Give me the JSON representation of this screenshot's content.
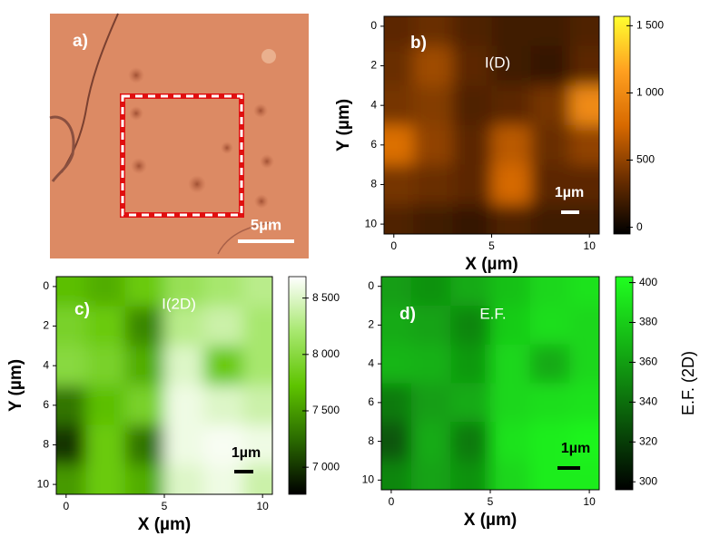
{
  "chart_data": [
    {
      "type": "image",
      "label": "a)",
      "scale_bar": "5µm"
    },
    {
      "type": "heatmap",
      "label": "b)",
      "title": "I(D)",
      "scale_bar": "1µm",
      "x_label": "X (µm)",
      "y_label": "Y (µm)",
      "x": [
        0,
        2,
        4,
        6,
        8,
        10
      ],
      "y": [
        0,
        2,
        4,
        6,
        8,
        10
      ],
      "z": [
        [
          300,
          350,
          250,
          200,
          200,
          250
        ],
        [
          350,
          550,
          300,
          200,
          150,
          300
        ],
        [
          400,
          450,
          250,
          300,
          400,
          1000
        ],
        [
          800,
          500,
          300,
          650,
          350,
          500
        ],
        [
          400,
          350,
          300,
          750,
          300,
          300
        ],
        [
          250,
          200,
          150,
          250,
          200,
          200
        ]
      ],
      "xlim": [
        -0.5,
        10.5
      ],
      "ylim": [
        -0.5,
        10.5
      ],
      "y_inverted": true,
      "xticks": [
        0,
        5,
        10
      ],
      "yticks": [
        0,
        2,
        4,
        6,
        8,
        10
      ],
      "clim": [
        -50,
        1570
      ],
      "cticks": [
        0,
        500,
        {
          "value": 1000,
          "label": "1 000"
        },
        {
          "value": 1500,
          "label": "1 500"
        }
      ],
      "colormap": [
        "#000000",
        "#6a2e00",
        "#d86a00",
        "#ffa020",
        "#ffff30"
      ],
      "text_color": "#ffffff"
    },
    {
      "type": "heatmap",
      "label": "c)",
      "title": "I(2D)",
      "scale_bar": "1µm",
      "x_label": "X (µm)",
      "y_label": "Y (µm)",
      "x": [
        0,
        2,
        4,
        6,
        8,
        10
      ],
      "y": [
        0,
        2,
        4,
        6,
        8,
        10
      ],
      "z": [
        [
          7700,
          7600,
          7800,
          8100,
          8200,
          8300
        ],
        [
          7900,
          7800,
          7400,
          8300,
          8400,
          8200
        ],
        [
          8000,
          7900,
          7600,
          8500,
          7800,
          8200
        ],
        [
          7300,
          7700,
          7900,
          8600,
          8500,
          8400
        ],
        [
          7000,
          7800,
          7300,
          8600,
          8650,
          8600
        ],
        [
          7500,
          7800,
          7600,
          8500,
          8600,
          8400
        ]
      ],
      "xlim": [
        -0.5,
        10.5
      ],
      "ylim": [
        -0.5,
        10.5
      ],
      "y_inverted": true,
      "xticks": [
        0,
        5,
        10
      ],
      "yticks": [
        0,
        2,
        4,
        6,
        8,
        10
      ],
      "clim": [
        6760,
        8690
      ],
      "cticks": [
        {
          "value": 7000,
          "label": "7 000"
        },
        {
          "value": 7500,
          "label": "7 500"
        },
        {
          "value": 8000,
          "label": "8 000"
        },
        {
          "value": 8500,
          "label": "8 500"
        }
      ],
      "colormap": [
        "#000000",
        "#2a6a00",
        "#5ec400",
        "#a8e870",
        "#ffffff"
      ],
      "text_color": "#000000"
    },
    {
      "type": "heatmap",
      "label": "d)",
      "title": "E.F.",
      "scale_bar": "1µm",
      "x_label": "X (µm)",
      "colorbar_label": "E.F. (2D)",
      "x": [
        0,
        2,
        4,
        6,
        8,
        10
      ],
      "y": [
        0,
        2,
        4,
        6,
        8,
        10
      ],
      "z": [
        [
          360,
          355,
          365,
          375,
          385,
          390
        ],
        [
          365,
          362,
          350,
          380,
          388,
          385
        ],
        [
          370,
          368,
          358,
          385,
          365,
          385
        ],
        [
          345,
          360,
          365,
          385,
          388,
          390
        ],
        [
          330,
          365,
          345,
          390,
          395,
          398
        ],
        [
          350,
          362,
          355,
          385,
          395,
          395
        ]
      ],
      "xlim": [
        -0.5,
        10.5
      ],
      "ylim": [
        -0.5,
        10.5
      ],
      "y_inverted": true,
      "xticks": [
        0,
        5,
        10
      ],
      "yticks": [
        0,
        2,
        4,
        6,
        8,
        10
      ],
      "clim": [
        296,
        403
      ],
      "cticks": [
        300,
        320,
        340,
        360,
        380,
        400
      ],
      "colormap": [
        "#000000",
        "#0a5a0a",
        "#14b014",
        "#20ff20"
      ],
      "text_color": "#000000"
    }
  ]
}
